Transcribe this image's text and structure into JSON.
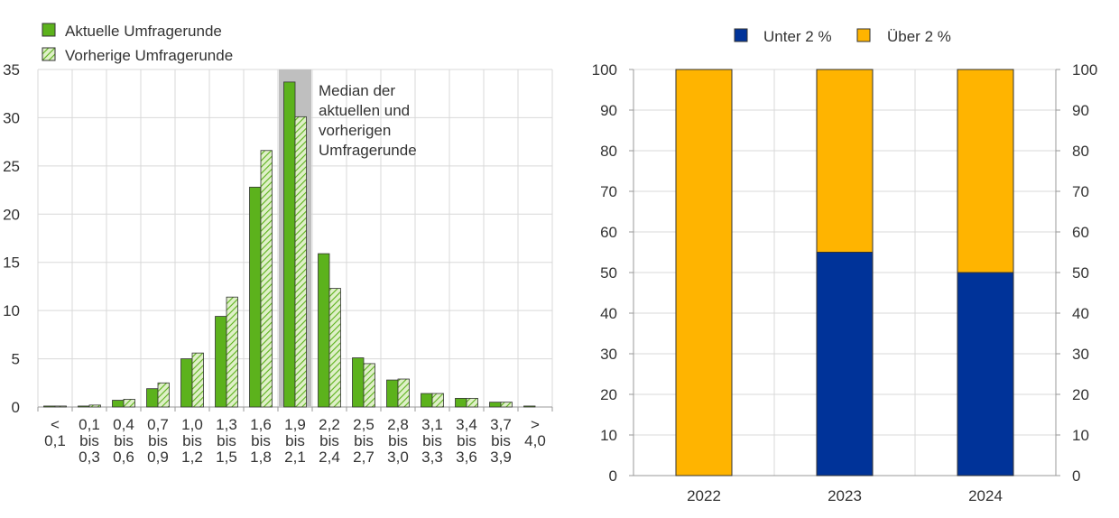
{
  "colors": {
    "current": "#5cb21c",
    "previous_hatch_fg": "#5cb21c",
    "previous_hatch_bg": "#dff0c8",
    "median_band": "#bfbfbf",
    "below2": "#003399",
    "above2": "#ffb400",
    "grid": "#d9d9d9",
    "text": "#333333"
  },
  "chart_data": [
    {
      "type": "bar",
      "legend_placement": "top-left",
      "grid": true,
      "ylim": [
        0,
        35
      ],
      "yticks": [
        "0",
        "5",
        "10",
        "15",
        "20",
        "25",
        "30",
        "35"
      ],
      "categories": [
        [
          "<",
          "0,1"
        ],
        [
          "0,1",
          "bis",
          "0,3"
        ],
        [
          "0,4",
          "bis",
          "0,6"
        ],
        [
          "0,7",
          "bis",
          "0,9"
        ],
        [
          "1,0",
          "bis",
          "1,2"
        ],
        [
          "1,3",
          "bis",
          "1,5"
        ],
        [
          "1,6",
          "bis",
          "1,8"
        ],
        [
          "1,9",
          "bis",
          "2,1"
        ],
        [
          "2,2",
          "bis",
          "2,4"
        ],
        [
          "2,5",
          "bis",
          "2,7"
        ],
        [
          "2,8",
          "bis",
          "3,0"
        ],
        [
          "3,1",
          "bis",
          "3,3"
        ],
        [
          "3,4",
          "bis",
          "3,6"
        ],
        [
          "3,7",
          "bis",
          "3,9"
        ],
        [
          ">",
          "4,0"
        ]
      ],
      "series": [
        {
          "name": "Aktuelle Umfragerunde",
          "values": [
            0.1,
            0.1,
            0.7,
            1.9,
            5.0,
            9.4,
            22.8,
            33.7,
            15.9,
            5.1,
            2.8,
            1.4,
            0.9,
            0.5,
            0.1
          ]
        },
        {
          "name": "Vorherige Umfragerunde",
          "values": [
            0.1,
            0.2,
            0.8,
            2.5,
            5.6,
            11.4,
            26.6,
            30.1,
            12.3,
            4.5,
            2.9,
            1.4,
            0.9,
            0.5,
            0.0
          ]
        }
      ],
      "median_category_index": 7,
      "annotation": [
        "Median der",
        "aktuellen und",
        "vorherigen",
        "Umfragerunde"
      ]
    },
    {
      "type": "bar",
      "stacked": true,
      "legend_placement": "top-center",
      "grid": true,
      "ylim": [
        0,
        100
      ],
      "yticks": [
        "0",
        "10",
        "20",
        "30",
        "40",
        "50",
        "60",
        "70",
        "80",
        "90",
        "100"
      ],
      "categories": [
        "2022",
        "2023",
        "2024"
      ],
      "series": [
        {
          "name": "Unter 2 %",
          "values": [
            0,
            55,
            50
          ]
        },
        {
          "name": "Über 2 %",
          "values": [
            100,
            45,
            50
          ]
        }
      ]
    }
  ]
}
